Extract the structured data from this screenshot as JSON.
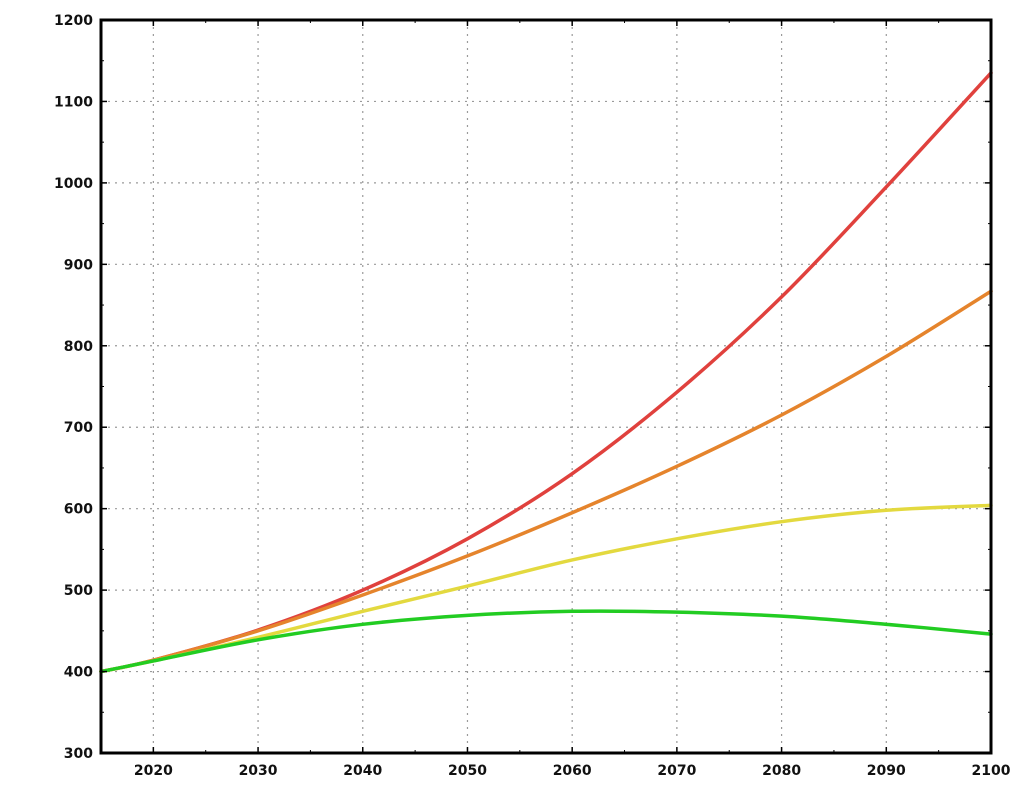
{
  "chart_data": {
    "type": "line",
    "title": "",
    "xlabel": "",
    "ylabel": "",
    "xlim": [
      2015,
      2100
    ],
    "ylim": [
      300,
      1200
    ],
    "grid": true,
    "legend": "none",
    "x_ticks": [
      2020,
      2030,
      2040,
      2050,
      2060,
      2070,
      2080,
      2090,
      2100
    ],
    "x_tick_labels": [
      "2020",
      "2030",
      "2040",
      "2050",
      "2060",
      "2070",
      "2080",
      "2090",
      "2100"
    ],
    "y_ticks": [
      300,
      400,
      500,
      600,
      700,
      800,
      900,
      1000,
      1100,
      1200
    ],
    "y_tick_labels": [
      "300",
      "400",
      "500",
      "600",
      "700",
      "800",
      "900",
      "1000",
      "1100",
      "1200"
    ],
    "series": [
      {
        "color": "#e0413d",
        "x": [
          2015,
          2020,
          2030,
          2040,
          2050,
          2060,
          2070,
          2080,
          2090,
          2100
        ],
        "y": [
          400,
          414,
          451,
          500,
          563,
          643,
          743,
          860,
          995,
          1135
        ]
      },
      {
        "color": "#e5842c",
        "x": [
          2015,
          2020,
          2030,
          2040,
          2050,
          2060,
          2070,
          2080,
          2090,
          2100
        ],
        "y": [
          400,
          414,
          450,
          494,
          542,
          595,
          652,
          715,
          787,
          867
        ]
      },
      {
        "color": "#e3d93f",
        "x": [
          2015,
          2020,
          2030,
          2040,
          2050,
          2060,
          2070,
          2080,
          2090,
          2100
        ],
        "y": [
          400,
          413,
          442,
          474,
          505,
          537,
          563,
          584,
          598,
          604
        ]
      },
      {
        "color": "#22cc22",
        "x": [
          2015,
          2020,
          2030,
          2040,
          2050,
          2060,
          2070,
          2080,
          2090,
          2100
        ],
        "y": [
          400,
          413,
          439,
          458,
          469,
          474,
          473,
          468,
          458,
          446
        ]
      }
    ]
  }
}
